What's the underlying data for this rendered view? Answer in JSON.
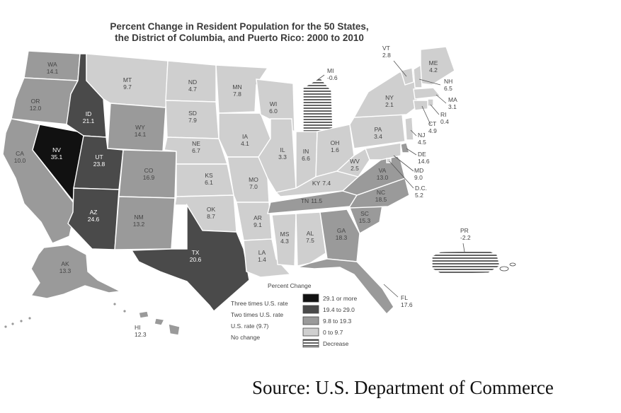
{
  "title_line1": "Percent Change in Resident Population for the 50 States,",
  "title_line2": "the District of Columbia, and Puerto Rico: 2000 to 2010",
  "colors": {
    "black": "#111111",
    "dark": "#4a4a4a",
    "medium": "#9a9a9a",
    "light": "#cfcfcf",
    "decrease": "#ffffff"
  },
  "states": [
    {
      "abbr": "WA",
      "value": "14.1",
      "cat": "medium"
    },
    {
      "abbr": "OR",
      "value": "12.0",
      "cat": "medium"
    },
    {
      "abbr": "CA",
      "value": "10.0",
      "cat": "medium"
    },
    {
      "abbr": "NV",
      "value": "35.1",
      "cat": "black"
    },
    {
      "abbr": "ID",
      "value": "21.1",
      "cat": "dark"
    },
    {
      "abbr": "UT",
      "value": "23.8",
      "cat": "dark"
    },
    {
      "abbr": "AZ",
      "value": "24.6",
      "cat": "dark"
    },
    {
      "abbr": "MT",
      "value": "9.7",
      "cat": "light"
    },
    {
      "abbr": "WY",
      "value": "14.1",
      "cat": "medium"
    },
    {
      "abbr": "CO",
      "value": "16.9",
      "cat": "medium"
    },
    {
      "abbr": "NM",
      "value": "13.2",
      "cat": "medium"
    },
    {
      "abbr": "ND",
      "value": "4.7",
      "cat": "light"
    },
    {
      "abbr": "SD",
      "value": "7.9",
      "cat": "light"
    },
    {
      "abbr": "NE",
      "value": "6.7",
      "cat": "light"
    },
    {
      "abbr": "KS",
      "value": "6.1",
      "cat": "light"
    },
    {
      "abbr": "OK",
      "value": "8.7",
      "cat": "light"
    },
    {
      "abbr": "TX",
      "value": "20.6",
      "cat": "dark"
    },
    {
      "abbr": "MN",
      "value": "7.8",
      "cat": "light"
    },
    {
      "abbr": "IA",
      "value": "4.1",
      "cat": "light"
    },
    {
      "abbr": "MO",
      "value": "7.0",
      "cat": "light"
    },
    {
      "abbr": "AR",
      "value": "9.1",
      "cat": "light"
    },
    {
      "abbr": "LA",
      "value": "1.4",
      "cat": "light"
    },
    {
      "abbr": "WI",
      "value": "6.0",
      "cat": "light"
    },
    {
      "abbr": "IL",
      "value": "3.3",
      "cat": "light"
    },
    {
      "abbr": "MI",
      "value": "-0.6",
      "cat": "decrease"
    },
    {
      "abbr": "IN",
      "value": "6.6",
      "cat": "light"
    },
    {
      "abbr": "OH",
      "value": "1.6",
      "cat": "light"
    },
    {
      "abbr": "KY",
      "value": "7.4",
      "cat": "light"
    },
    {
      "abbr": "TN",
      "value": "11.5",
      "cat": "medium"
    },
    {
      "abbr": "MS",
      "value": "4.3",
      "cat": "light"
    },
    {
      "abbr": "AL",
      "value": "7.5",
      "cat": "light"
    },
    {
      "abbr": "GA",
      "value": "18.3",
      "cat": "medium"
    },
    {
      "abbr": "FL",
      "value": "17.6",
      "cat": "medium"
    },
    {
      "abbr": "SC",
      "value": "15.3",
      "cat": "medium"
    },
    {
      "abbr": "NC",
      "value": "18.5",
      "cat": "medium"
    },
    {
      "abbr": "VA",
      "value": "13.0",
      "cat": "medium"
    },
    {
      "abbr": "WV",
      "value": "2.5",
      "cat": "light"
    },
    {
      "abbr": "PA",
      "value": "3.4",
      "cat": "light"
    },
    {
      "abbr": "NY",
      "value": "2.1",
      "cat": "light"
    },
    {
      "abbr": "VT",
      "value": "2.8",
      "cat": "light"
    },
    {
      "abbr": "ME",
      "value": "4.2",
      "cat": "light"
    },
    {
      "abbr": "NH",
      "value": "6.5",
      "cat": "light"
    },
    {
      "abbr": "MA",
      "value": "3.1",
      "cat": "light"
    },
    {
      "abbr": "RI",
      "value": "0.4",
      "cat": "light"
    },
    {
      "abbr": "CT",
      "value": "4.9",
      "cat": "light"
    },
    {
      "abbr": "NJ",
      "value": "4.5",
      "cat": "light"
    },
    {
      "abbr": "DE",
      "value": "14.6",
      "cat": "medium"
    },
    {
      "abbr": "MD",
      "value": "9.0",
      "cat": "light"
    },
    {
      "abbr": "D.C.",
      "value": "5.2",
      "cat": "light"
    },
    {
      "abbr": "AK",
      "value": "13.3",
      "cat": "medium"
    },
    {
      "abbr": "HI",
      "value": "12.3",
      "cat": "medium"
    },
    {
      "abbr": "PR",
      "value": "-2.2",
      "cat": "decrease"
    }
  ],
  "legend": {
    "title": "Percent Change",
    "items": [
      {
        "note": "Three times U.S. rate",
        "range": "29.1 or more",
        "cat": "black"
      },
      {
        "note": "Two times U.S. rate",
        "range": "19.4 to 29.0",
        "cat": "dark"
      },
      {
        "note": "U.S. rate (9.7)",
        "range": "9.8 to 19.3",
        "cat": "medium"
      },
      {
        "note": "No change",
        "range": "0 to 9.7",
        "cat": "light"
      },
      {
        "note": "",
        "range": "Decrease",
        "cat": "decrease"
      }
    ]
  },
  "source": "Source: U.S. Department of Commerce"
}
